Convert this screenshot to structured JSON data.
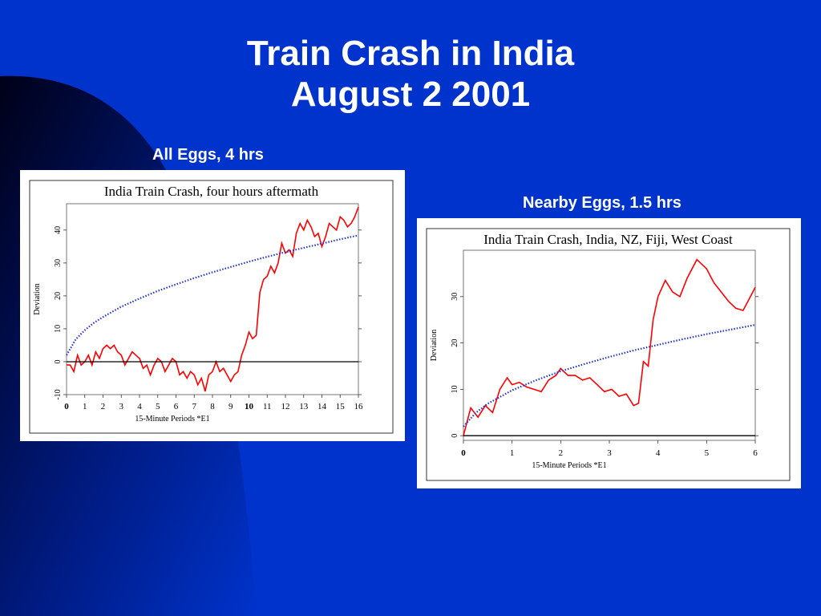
{
  "slide": {
    "title_line1": "Train Crash in India",
    "title_line2": "August 2 2001",
    "caption_left": "All Eggs, 4 hrs",
    "caption_right": "Nearby Eggs, 1.5 hrs",
    "colors": {
      "background": "#0033cc",
      "text": "#ffffff",
      "deviation": "#ff0000",
      "expected": "#2233dd"
    }
  },
  "chart_data": [
    {
      "type": "line",
      "title": "India Train Crash, four hours aftermath",
      "xlabel": "15-Minute Periods   *E1",
      "ylabel": "Deviation",
      "xlim": [
        0,
        16
      ],
      "ylim": [
        -10,
        48
      ],
      "x_ticks": [
        0,
        1,
        2,
        3,
        4,
        5,
        6,
        7,
        8,
        9,
        10,
        11,
        12,
        13,
        14,
        15,
        16
      ],
      "y_ticks": [
        -10,
        0,
        10,
        20,
        30,
        40
      ],
      "series": [
        {
          "style": "solid-red",
          "x": [
            0,
            0.2,
            0.4,
            0.6,
            0.8,
            1,
            1.2,
            1.4,
            1.6,
            1.8,
            2,
            2.2,
            2.4,
            2.6,
            2.8,
            3,
            3.2,
            3.4,
            3.6,
            3.8,
            4,
            4.2,
            4.4,
            4.6,
            4.8,
            5,
            5.2,
            5.4,
            5.6,
            5.8,
            6,
            6.2,
            6.4,
            6.6,
            6.8,
            7,
            7.2,
            7.4,
            7.6,
            7.8,
            8,
            8.2,
            8.4,
            8.6,
            8.8,
            9,
            9.2,
            9.4,
            9.6,
            9.8,
            10,
            10.2,
            10.4,
            10.6,
            10.8,
            11,
            11.2,
            11.4,
            11.6,
            11.8,
            12,
            12.2,
            12.4,
            12.6,
            12.8,
            13,
            13.2,
            13.4,
            13.6,
            13.8,
            14,
            14.2,
            14.4,
            14.6,
            14.8,
            15,
            15.2,
            15.4,
            15.6,
            15.8,
            16
          ],
          "y": [
            -1,
            -1,
            -3,
            2,
            -1,
            0,
            2,
            -1,
            3,
            1,
            4,
            5,
            4,
            5,
            3,
            2,
            -1,
            1,
            3,
            2,
            1,
            -2,
            -1,
            -4,
            -1,
            1,
            0,
            -3,
            -1,
            1,
            0,
            -4,
            -3,
            -5,
            -3,
            -4,
            -7,
            -5,
            -9,
            -4,
            -3,
            0,
            -3,
            -2,
            -4,
            -6,
            -4,
            -3,
            2,
            5,
            9,
            7,
            8,
            21,
            25,
            26,
            29,
            27,
            30,
            36,
            33,
            34,
            32,
            39,
            42,
            40,
            43,
            41,
            38,
            39,
            35,
            38,
            42,
            41,
            40,
            44,
            43,
            41,
            42,
            44,
            47
          ]
        },
        {
          "style": "dotted-blue",
          "x": [
            0,
            0.5,
            1,
            1.5,
            2,
            3,
            4,
            5,
            6,
            7,
            8,
            9,
            10,
            11,
            12,
            13,
            14,
            15,
            16
          ],
          "y": [
            2,
            6.8,
            9.6,
            11.8,
            13.6,
            16.7,
            19.2,
            21.5,
            23.5,
            25.4,
            27.2,
            28.8,
            30.4,
            31.9,
            33.3,
            34.6,
            35.9,
            37.2,
            38.4
          ]
        },
        {
          "style": "solid-black",
          "x": [
            0,
            16
          ],
          "y": [
            0,
            0
          ]
        }
      ]
    },
    {
      "type": "line",
      "title": "India Train Crash, India, NZ, Fiji, West Coast",
      "xlabel": "15-Minute Periods   *E1",
      "ylabel": "Deviation",
      "xlim": [
        0,
        6
      ],
      "ylim": [
        -1,
        40
      ],
      "x_ticks": [
        0,
        1,
        2,
        3,
        4,
        5,
        6
      ],
      "y_ticks": [
        0,
        10,
        20,
        30
      ],
      "series": [
        {
          "style": "solid-red",
          "x": [
            0,
            0.15,
            0.3,
            0.45,
            0.6,
            0.75,
            0.9,
            1,
            1.15,
            1.3,
            1.45,
            1.6,
            1.75,
            1.9,
            2,
            2.15,
            2.3,
            2.45,
            2.6,
            2.75,
            2.9,
            3.05,
            3.2,
            3.35,
            3.5,
            3.6,
            3.7,
            3.8,
            3.9,
            4,
            4.15,
            4.3,
            4.45,
            4.6,
            4.8,
            5,
            5.15,
            5.3,
            5.45,
            5.6,
            5.75,
            5.85,
            6
          ],
          "y": [
            0,
            6,
            4,
            6.5,
            5,
            10,
            12.5,
            11,
            11.5,
            10.5,
            10,
            9.5,
            12,
            13,
            14.5,
            13,
            13,
            12,
            12.5,
            11,
            9.5,
            10,
            8.5,
            9,
            6.5,
            7,
            16,
            15,
            25,
            30,
            33.5,
            31,
            30,
            34,
            38,
            36,
            33,
            31,
            29,
            27.5,
            27,
            29,
            32
          ]
        },
        {
          "style": "dotted-blue",
          "x": [
            0,
            0.25,
            0.5,
            1,
            1.5,
            2,
            2.5,
            3,
            3.5,
            4,
            4.5,
            5,
            5.5,
            6
          ],
          "y": [
            2,
            4.9,
            6.9,
            9.8,
            12,
            13.9,
            15.5,
            17,
            18.4,
            19.6,
            20.8,
            21.9,
            22.9,
            23.9
          ]
        },
        {
          "style": "solid-black",
          "x": [
            0,
            6
          ],
          "y": [
            0,
            0
          ]
        }
      ]
    }
  ]
}
